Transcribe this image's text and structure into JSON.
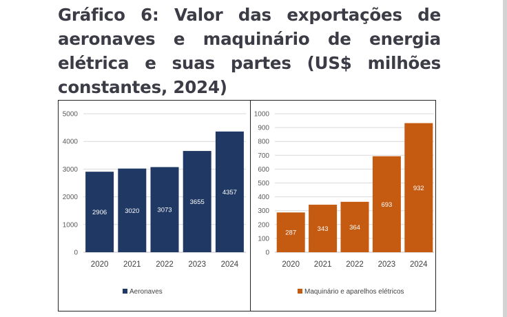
{
  "title": "Gráfico 6: Valor das exportações de aeronaves e maquinário de energia elétrica e suas partes (US$ milhões constantes, 2024)",
  "chart_data": [
    {
      "type": "bar",
      "categories": [
        "2020",
        "2021",
        "2022",
        "2023",
        "2024"
      ],
      "series": [
        {
          "name": "Aeronaves",
          "values": [
            2906,
            3020,
            3073,
            3655,
            4357
          ]
        }
      ],
      "ylim": [
        0,
        5000
      ],
      "yticks": [
        0,
        1000,
        2000,
        3000,
        4000,
        5000
      ],
      "color": "#1f3864",
      "grid": true,
      "legend": "bottom"
    },
    {
      "type": "bar",
      "categories": [
        "2020",
        "2021",
        "2022",
        "2023",
        "2024"
      ],
      "series": [
        {
          "name": "Maquinário e aparelhos elétricos",
          "values": [
            287,
            343,
            364,
            693,
            932
          ]
        }
      ],
      "ylim": [
        0,
        1000
      ],
      "yticks": [
        0,
        100,
        200,
        300,
        400,
        500,
        600,
        700,
        800,
        900,
        1000
      ],
      "color": "#c55a11",
      "grid": true,
      "legend": "bottom"
    }
  ]
}
